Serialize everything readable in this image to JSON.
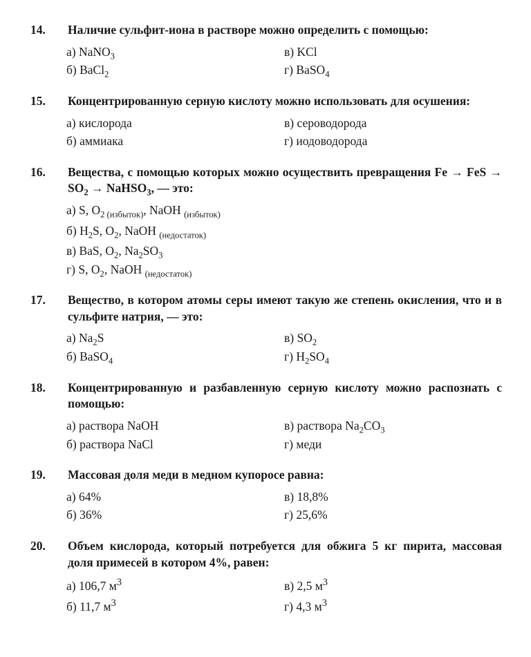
{
  "questions": [
    {
      "num": "14.",
      "text": "Наличие сульфит-иона в растворе можно определить с помощью:",
      "layout": "2col",
      "options_left": [
        {
          "label": "а)",
          "html": "NaNO<sub>3</sub>"
        },
        {
          "label": "б)",
          "html": "BaCl<sub>2</sub>"
        }
      ],
      "options_right": [
        {
          "label": "в)",
          "html": "KCl"
        },
        {
          "label": "г)",
          "html": "BaSO<sub>4</sub>"
        }
      ]
    },
    {
      "num": "15.",
      "text": "Концентрированную серную кислоту можно использовать для осушения:",
      "layout": "2col",
      "options_left": [
        {
          "label": "а)",
          "html": "кислорода"
        },
        {
          "label": "б)",
          "html": "аммиака"
        }
      ],
      "options_right": [
        {
          "label": "в)",
          "html": "сероводорода"
        },
        {
          "label": "г)",
          "html": "иодоводорода"
        }
      ]
    },
    {
      "num": "16.",
      "text_html": "Вещества, с помощью которых можно осуществить превращения Fe → FeS → SO<sub>2</sub> → NaHSO<sub>3</sub>, — это:",
      "layout": "1col",
      "options": [
        {
          "label": "а)",
          "html": "S, O<sub>2 (избыток)</sub>, NaOH <span class=\"subnote\">(избыток)</span>"
        },
        {
          "label": "б)",
          "html": "H<sub>2</sub>S, O<sub>2</sub>, NaOH <span class=\"subnote\">(недостаток)</span>"
        },
        {
          "label": "в)",
          "html": "BaS, O<sub>2</sub>, Na<sub>2</sub>SO<sub>3</sub>"
        },
        {
          "label": "г)",
          "html": "S, O<sub>2</sub>, NaOH <span class=\"subnote\">(недостаток)</span>"
        }
      ]
    },
    {
      "num": "17.",
      "text": "Вещество, в котором атомы серы имеют такую же степень окисления, что и в сульфите натрия, — это:",
      "layout": "2col",
      "options_left": [
        {
          "label": "а)",
          "html": "Na<sub>2</sub>S"
        },
        {
          "label": "б)",
          "html": "BaSO<sub>4</sub>"
        }
      ],
      "options_right": [
        {
          "label": "в)",
          "html": "SO<sub>2</sub>"
        },
        {
          "label": "г)",
          "html": "H<sub>2</sub>SO<sub>4</sub>"
        }
      ]
    },
    {
      "num": "18.",
      "text": "Концентрированную и разбавленную серную кислоту можно распознать с помощью:",
      "layout": "2col",
      "options_left": [
        {
          "label": "а)",
          "html": "раствора NaOH"
        },
        {
          "label": "б)",
          "html": "раствора NaCl"
        }
      ],
      "options_right": [
        {
          "label": "в)",
          "html": "раствора Na<sub>2</sub>CO<sub>3</sub>"
        },
        {
          "label": "г)",
          "html": "меди"
        }
      ]
    },
    {
      "num": "19.",
      "text": "Массовая доля меди в медном купоросе равна:",
      "layout": "2col",
      "options_left": [
        {
          "label": "а)",
          "html": "64%"
        },
        {
          "label": "б)",
          "html": "36%"
        }
      ],
      "options_right": [
        {
          "label": "в)",
          "html": "18,8%"
        },
        {
          "label": "г)",
          "html": "25,6%"
        }
      ]
    },
    {
      "num": "20.",
      "text": "Объем кислорода, который потребуется для обжига 5 кг пирита, массовая доля примесей в котором 4%, равен:",
      "layout": "2col",
      "options_left": [
        {
          "label": "а)",
          "html": "106,7 м<sup>3</sup>"
        },
        {
          "label": "б)",
          "html": "11,7 м<sup>3</sup>"
        }
      ],
      "options_right": [
        {
          "label": "в)",
          "html": "2,5 м<sup>3</sup>"
        },
        {
          "label": "г)",
          "html": "4,3 м<sup>3</sup>"
        }
      ]
    }
  ]
}
